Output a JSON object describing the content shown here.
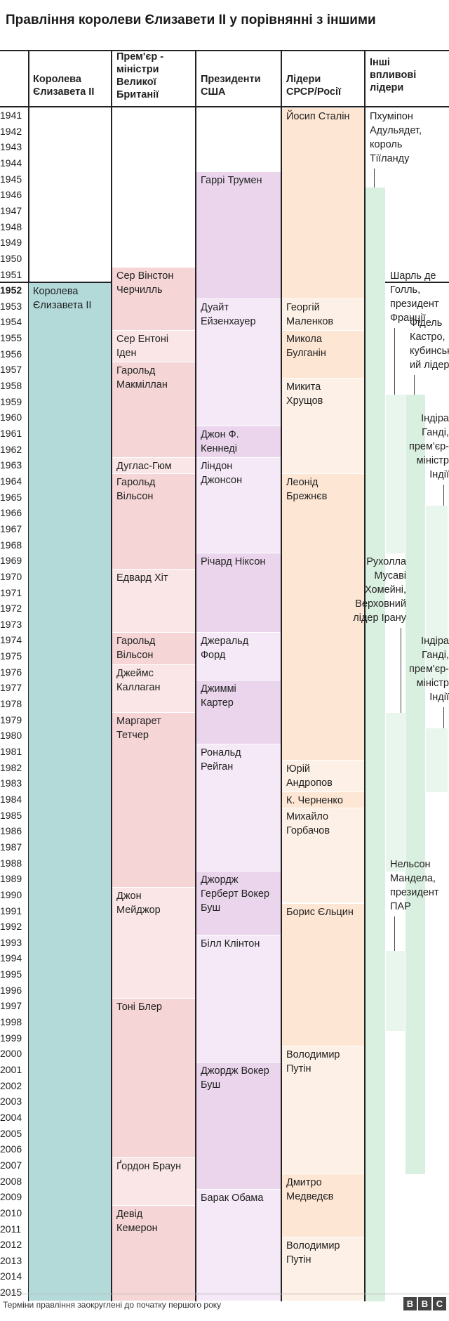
{
  "title": "Правління королеви Єлизавети II у порівнянні з іншими",
  "footer": {
    "note": "Терміни правління заокруглені до початку першого року",
    "logo": [
      "B",
      "B",
      "C"
    ]
  },
  "chart_data": {
    "type": "timeline",
    "year_start": 1941,
    "year_end": 2015,
    "highlight_year": 1952,
    "colors": {
      "queen": "#b3d9d9",
      "pm_a": "#f5d5d5",
      "pm_b": "#fae6e6",
      "us_a": "#ead5ec",
      "us_b": "#f5e8f7",
      "ussr_a": "#fde6d3",
      "ussr_b": "#fdf0e6",
      "other_a": "#d9efe0",
      "other_b": "#e9f6ed"
    },
    "columns": [
      {
        "key": "queen",
        "header": [
          "Королева",
          "Єлизавета II"
        ]
      },
      {
        "key": "pm",
        "header": [
          "Прем'єр -",
          "міністри",
          "Великої",
          "Британії"
        ]
      },
      {
        "key": "us",
        "header": [
          "Президенти",
          "США"
        ]
      },
      {
        "key": "ussr",
        "header": [
          "Лідери",
          "СРСР/Росії"
        ]
      },
      {
        "key": "other",
        "header": [
          "Інші",
          "впливові",
          "лідери"
        ]
      }
    ],
    "queen": [
      {
        "name": [
          "Королева",
          "Єлизавета II"
        ],
        "start": 1952,
        "end": 2016,
        "shade": "queen"
      }
    ],
    "pm": [
      {
        "name": [
          "Сер Вінстон",
          "Черчилль"
        ],
        "start": 1951,
        "end": 1955,
        "shade": "pm_a"
      },
      {
        "name": [
          "Сер Ентоні",
          "Іден"
        ],
        "start": 1955,
        "end": 1957,
        "shade": "pm_b"
      },
      {
        "name": [
          "Гарольд",
          "Макміллан"
        ],
        "start": 1957,
        "end": 1963,
        "shade": "pm_a"
      },
      {
        "name": [
          "Дуглас-Гюм"
        ],
        "start": 1963,
        "end": 1964,
        "shade": "pm_b"
      },
      {
        "name": [
          "Гарольд",
          "Вільсон"
        ],
        "start": 1964,
        "end": 1970,
        "shade": "pm_a"
      },
      {
        "name": [
          "Едвард Хіт"
        ],
        "start": 1970,
        "end": 1974,
        "shade": "pm_b"
      },
      {
        "name": [
          "Гарольд",
          "Вільсон"
        ],
        "start": 1974,
        "end": 1976,
        "shade": "pm_a"
      },
      {
        "name": [
          "Джеймс",
          "Каллаган"
        ],
        "start": 1976,
        "end": 1979,
        "shade": "pm_b"
      },
      {
        "name": [
          "Маргарет",
          "Тетчер"
        ],
        "start": 1979,
        "end": 1990,
        "shade": "pm_a"
      },
      {
        "name": [
          "Джон",
          "Мейджор"
        ],
        "start": 1990,
        "end": 1997,
        "shade": "pm_b"
      },
      {
        "name": [
          "Тоні Блер"
        ],
        "start": 1997,
        "end": 2007,
        "shade": "pm_a"
      },
      {
        "name": [
          "Ґордон Браун"
        ],
        "start": 2007,
        "end": 2010,
        "shade": "pm_b"
      },
      {
        "name": [
          "Девід",
          "Кемерон"
        ],
        "start": 2010,
        "end": 2016,
        "shade": "pm_a"
      }
    ],
    "us": [
      {
        "name": [
          "Гаррі Трумен"
        ],
        "start": 1945,
        "end": 1953,
        "shade": "us_a"
      },
      {
        "name": [
          "Дуайт",
          "Ейзенхауер"
        ],
        "start": 1953,
        "end": 1961,
        "shade": "us_b"
      },
      {
        "name": [
          "Джон Ф.",
          "Кеннеді"
        ],
        "start": 1961,
        "end": 1963,
        "shade": "us_a"
      },
      {
        "name": [
          "Ліндон",
          "Джонсон"
        ],
        "start": 1963,
        "end": 1969,
        "shade": "us_b"
      },
      {
        "name": [
          "Річард Ніксон"
        ],
        "start": 1969,
        "end": 1974,
        "shade": "us_a"
      },
      {
        "name": [
          "Джеральд",
          "Форд"
        ],
        "start": 1974,
        "end": 1977,
        "shade": "us_b"
      },
      {
        "name": [
          "Джиммі",
          "Картер"
        ],
        "start": 1977,
        "end": 1981,
        "shade": "us_a"
      },
      {
        "name": [
          "Рональд",
          "Рейган"
        ],
        "start": 1981,
        "end": 1989,
        "shade": "us_b"
      },
      {
        "name": [
          "Джордж",
          "Герберт Вокер",
          "Буш"
        ],
        "start": 1989,
        "end": 1993,
        "shade": "us_a"
      },
      {
        "name": [
          "Білл Клінтон"
        ],
        "start": 1993,
        "end": 2001,
        "shade": "us_b"
      },
      {
        "name": [
          "Джордж Вокер",
          "Буш"
        ],
        "start": 2001,
        "end": 2009,
        "shade": "us_a"
      },
      {
        "name": [
          "Барак   Обама"
        ],
        "start": 2009,
        "end": 2016,
        "shade": "us_b"
      }
    ],
    "ussr": [
      {
        "name": [
          "Йосип Сталін"
        ],
        "start": 1941,
        "end": 1953,
        "shade": "ussr_a"
      },
      {
        "name": [
          "Георгій",
          "Маленков"
        ],
        "start": 1953,
        "end": 1955,
        "shade": "ussr_b"
      },
      {
        "name": [
          "Микола",
          "Булганін"
        ],
        "start": 1955,
        "end": 1958,
        "shade": "ussr_a"
      },
      {
        "name": [
          "Микита",
          "Хрущов"
        ],
        "start": 1958,
        "end": 1964,
        "shade": "ussr_b"
      },
      {
        "name": [
          "Леонід",
          "Брежнєв"
        ],
        "start": 1964,
        "end": 1982,
        "shade": "ussr_a"
      },
      {
        "name": [
          "Юрій",
          "Андропов"
        ],
        "start": 1982,
        "end": 1984,
        "shade": "ussr_b"
      },
      {
        "name": [
          "К. Черненко"
        ],
        "start": 1984,
        "end": 1985,
        "shade": "ussr_a"
      },
      {
        "name": [
          "Михайло",
          "Горбачов"
        ],
        "start": 1985,
        "end": 1991,
        "shade": "ussr_b"
      },
      {
        "name": [
          "Борис Єльцин"
        ],
        "start": 1991,
        "end": 2000,
        "shade": "ussr_a"
      },
      {
        "name": [
          "Володимир",
          "Путін"
        ],
        "start": 2000,
        "end": 2008,
        "shade": "ussr_b"
      },
      {
        "name": [
          "Дмитро",
          "Медведєв"
        ],
        "start": 2008,
        "end": 2012,
        "shade": "ussr_a"
      },
      {
        "name": [
          "Володимир",
          "Путін"
        ],
        "start": 2012,
        "end": 2016,
        "shade": "ussr_b"
      }
    ],
    "other": [
      {
        "name": [
          "Пхуміпон",
          "Адульядет,",
          "король",
          "Тіїланду"
        ],
        "start": 1946,
        "end": 2016,
        "lane": 0,
        "shade": "other_a",
        "label_year": 1941,
        "align": "left"
      },
      {
        "name": [
          "Шарль де",
          "Голль,",
          "президент",
          "Франції"
        ],
        "start": 1959,
        "end": 1969,
        "lane": 1,
        "shade": "other_b",
        "label_year": 1951,
        "align": "left"
      },
      {
        "name": [
          "Фідель",
          "Кастро,",
          "кубинськ",
          "ий лідер"
        ],
        "start": 1959,
        "end": 2008,
        "lane": 2,
        "shade": "other_a",
        "label_year": 1954,
        "align": "left"
      },
      {
        "name": [
          "Індіра",
          "Ганді,",
          "прем'єр-",
          "міністр",
          "Індії"
        ],
        "start": 1966,
        "end": 1977,
        "lane": 3,
        "shade": "other_b",
        "label_year": 1960,
        "align": "right"
      },
      {
        "name": [
          "Рухолла",
          "Мусаві",
          "Хомейні,",
          "Верховний",
          "лідер Ірану"
        ],
        "start": 1979,
        "end": 1989,
        "lane": 1,
        "shade": "other_b",
        "label_year": 1969,
        "align": "right"
      },
      {
        "name": [
          "Індіра",
          "Ганді,",
          "прем'єр-",
          "міністр",
          "Індії"
        ],
        "start": 1980,
        "end": 1984,
        "lane": 3,
        "shade": "other_b",
        "label_year": 1974,
        "align": "right"
      },
      {
        "name": [
          "Нельсон",
          "Мандела,",
          "президент",
          "ПАР"
        ],
        "start": 1994,
        "end": 1999,
        "lane": 1,
        "shade": "other_b",
        "label_year": 1988,
        "align": "left"
      }
    ]
  }
}
